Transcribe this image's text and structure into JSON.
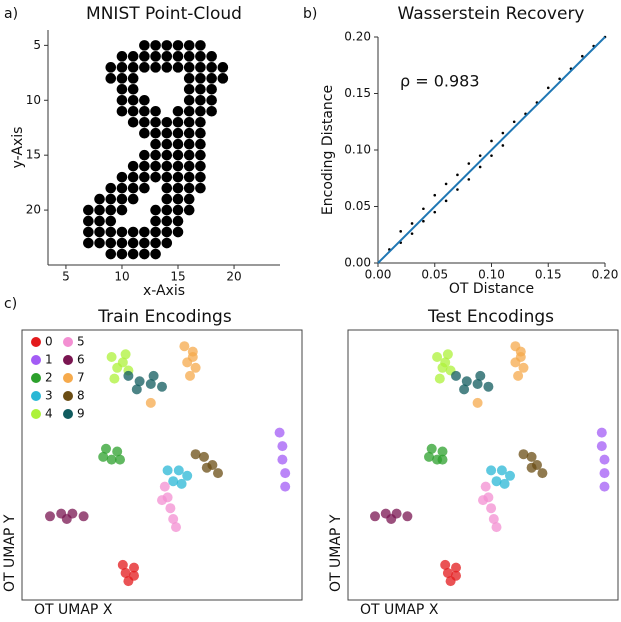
{
  "chart_data": [
    {
      "type": "scatter",
      "panel_label": "a)",
      "title": "MNIST Point-Cloud",
      "xlabel": "x-Axis",
      "ylabel": "y-Axis",
      "xlim": [
        3.4,
        24.1
      ],
      "ylim": [
        3.6,
        25
      ],
      "invert_y": true,
      "xticks": [
        5,
        10,
        15,
        20
      ],
      "yticks": [
        5,
        10,
        15,
        20
      ],
      "series": [
        {
          "color": "#000000",
          "x": [
            12,
            13,
            14,
            15,
            16,
            17,
            10,
            11,
            12,
            13,
            14,
            15,
            16,
            17,
            18,
            9,
            10,
            11,
            12,
            13,
            14,
            15,
            16,
            17,
            18,
            19,
            9,
            10,
            11,
            16,
            17,
            18,
            19,
            10,
            11,
            16,
            17,
            18,
            10,
            11,
            12,
            16,
            17,
            18,
            10,
            11,
            12,
            13,
            15,
            16,
            17,
            18,
            11,
            12,
            13,
            14,
            15,
            16,
            17,
            12,
            13,
            14,
            15,
            16,
            17,
            13,
            14,
            15,
            16,
            17,
            12,
            13,
            14,
            15,
            16,
            17,
            11,
            12,
            13,
            14,
            15,
            16,
            17,
            10,
            11,
            12,
            13,
            14,
            15,
            16,
            17,
            9,
            10,
            11,
            12,
            14,
            15,
            16,
            17,
            8,
            9,
            10,
            11,
            14,
            15,
            16,
            7,
            8,
            9,
            10,
            13,
            14,
            15,
            16,
            7,
            8,
            9,
            13,
            14,
            15,
            7,
            8,
            9,
            10,
            11,
            12,
            13,
            14,
            15,
            7,
            8,
            9,
            10,
            11,
            12,
            13,
            14,
            9,
            10,
            11,
            12,
            13
          ],
          "y": [
            5,
            5,
            5,
            5,
            5,
            5,
            6,
            6,
            6,
            6,
            6,
            6,
            6,
            6,
            6,
            7,
            7,
            7,
            7,
            7,
            7,
            7,
            7,
            7,
            7,
            7,
            8,
            8,
            8,
            8,
            8,
            8,
            8,
            9,
            9,
            9,
            9,
            9,
            10,
            10,
            10,
            10,
            10,
            10,
            11,
            11,
            11,
            11,
            11,
            11,
            11,
            11,
            12,
            12,
            12,
            12,
            12,
            12,
            12,
            13,
            13,
            13,
            13,
            13,
            13,
            14,
            14,
            14,
            14,
            14,
            15,
            15,
            15,
            15,
            15,
            15,
            16,
            16,
            16,
            16,
            16,
            16,
            16,
            17,
            17,
            17,
            17,
            17,
            17,
            17,
            17,
            18,
            18,
            18,
            18,
            18,
            18,
            18,
            18,
            19,
            19,
            19,
            19,
            19,
            19,
            19,
            20,
            20,
            20,
            20,
            20,
            20,
            20,
            20,
            21,
            21,
            21,
            21,
            21,
            21,
            22,
            22,
            22,
            22,
            22,
            22,
            22,
            22,
            22,
            23,
            23,
            23,
            23,
            23,
            23,
            23,
            23,
            24,
            24,
            24,
            24,
            24
          ]
        }
      ]
    },
    {
      "type": "scatter",
      "panel_label": "b)",
      "title": "Wasserstein Recovery",
      "xlabel": "OT Distance",
      "ylabel": "Encoding Distance",
      "annotation": "ρ = 0.983",
      "xlim": [
        0,
        0.2
      ],
      "ylim": [
        0,
        0.2
      ],
      "xticks": [
        {
          "value": 0,
          "label": "0.00"
        },
        {
          "value": 0.05,
          "label": "0.05"
        },
        {
          "value": 0.1,
          "label": "0.10"
        },
        {
          "value": 0.15,
          "label": "0.15"
        },
        {
          "value": 0.2,
          "label": "0.20"
        }
      ],
      "yticks": [
        {
          "value": 0,
          "label": "0.00"
        },
        {
          "value": 0.05,
          "label": "0.05"
        },
        {
          "value": 0.1,
          "label": "0.10"
        },
        {
          "value": 0.15,
          "label": "0.15"
        },
        {
          "value": 0.2,
          "label": "0.20"
        }
      ],
      "series": [
        {
          "color": "#000000",
          "x": [
            0.01,
            0.02,
            0.02,
            0.03,
            0.03,
            0.04,
            0.04,
            0.05,
            0.05,
            0.06,
            0.06,
            0.07,
            0.07,
            0.08,
            0.08,
            0.09,
            0.09,
            0.1,
            0.1,
            0.11,
            0.11,
            0.12,
            0.13,
            0.14,
            0.15,
            0.16,
            0.17,
            0.18,
            0.19,
            0.2
          ],
          "y": [
            0.012,
            0.018,
            0.028,
            0.035,
            0.026,
            0.048,
            0.037,
            0.06,
            0.045,
            0.07,
            0.055,
            0.078,
            0.065,
            0.088,
            0.074,
            0.095,
            0.085,
            0.108,
            0.095,
            0.115,
            0.104,
            0.125,
            0.132,
            0.142,
            0.155,
            0.163,
            0.172,
            0.183,
            0.192,
            0.2
          ]
        }
      ],
      "line": {
        "color": "#1f77b4",
        "x": [
          0,
          0.2
        ],
        "y": [
          0,
          0.2
        ]
      }
    },
    {
      "type": "scatter",
      "panel_label": "c)",
      "title": "Train Encodings",
      "xlabel": "OT UMAP X",
      "ylabel": "OT UMAP Y",
      "xlim": [
        0,
        100
      ],
      "ylim": [
        0,
        100
      ],
      "frame": true,
      "legend": true,
      "series": [
        {
          "name": "0",
          "color": "#e31a1c",
          "x": [
            36,
            40,
            37,
            40,
            38
          ],
          "y": [
            13,
            12,
            10,
            9,
            7
          ]
        },
        {
          "name": "1",
          "color": "#a35cf5",
          "x": [
            92,
            93,
            93,
            94,
            94
          ],
          "y": [
            62,
            57,
            52,
            47,
            42
          ]
        },
        {
          "name": "2",
          "color": "#2ca02c",
          "x": [
            30,
            34,
            32,
            29,
            35
          ],
          "y": [
            56,
            55,
            52,
            53,
            52
          ]
        },
        {
          "name": "3",
          "color": "#2ab7d5",
          "x": [
            52,
            56,
            59,
            54,
            57
          ],
          "y": [
            48,
            48,
            46,
            44,
            43
          ]
        },
        {
          "name": "4",
          "color": "#adf23a",
          "x": [
            32,
            37,
            34,
            38,
            33,
            36
          ],
          "y": [
            90,
            91,
            86,
            85,
            82,
            88
          ]
        },
        {
          "name": "5",
          "color": "#f38fd2",
          "x": [
            51,
            52,
            53,
            54,
            55,
            50
          ],
          "y": [
            42,
            38,
            34,
            30,
            27,
            37
          ]
        },
        {
          "name": "6",
          "color": "#7a1651",
          "x": [
            10,
            14,
            18,
            22,
            16
          ],
          "y": [
            31,
            32,
            32,
            31,
            30
          ]
        },
        {
          "name": "7",
          "color": "#f6aa4c",
          "x": [
            58,
            61,
            59,
            62,
            60,
            61,
            46
          ],
          "y": [
            94,
            92,
            88,
            86,
            83,
            90,
            73
          ]
        },
        {
          "name": "8",
          "color": "#6b4d14",
          "x": [
            62,
            65,
            68,
            70,
            66
          ],
          "y": [
            54,
            53,
            50,
            47,
            49
          ]
        },
        {
          "name": "9",
          "color": "#105b5e",
          "x": [
            38,
            42,
            46,
            50,
            41,
            47
          ],
          "y": [
            83,
            81,
            80,
            79,
            78,
            83
          ]
        }
      ]
    },
    {
      "type": "scatter",
      "title": "Test Encodings",
      "xlabel": "OT UMAP X",
      "ylabel": "OT UMAP Y",
      "xlim": [
        0,
        100
      ],
      "ylim": [
        0,
        100
      ],
      "frame": true,
      "legend": false,
      "series": [
        {
          "name": "0",
          "color": "#e31a1c",
          "x": [
            36,
            40,
            37,
            40,
            38
          ],
          "y": [
            13,
            12,
            10,
            9,
            7
          ]
        },
        {
          "name": "1",
          "color": "#a35cf5",
          "x": [
            94,
            94,
            95,
            95,
            95
          ],
          "y": [
            62,
            57,
            52,
            47,
            42
          ]
        },
        {
          "name": "2",
          "color": "#2ca02c",
          "x": [
            31,
            35,
            33,
            30,
            35
          ],
          "y": [
            56,
            55,
            52,
            53,
            52
          ]
        },
        {
          "name": "3",
          "color": "#2ab7d5",
          "x": [
            53,
            57,
            60,
            55,
            58
          ],
          "y": [
            48,
            48,
            46,
            44,
            43
          ]
        },
        {
          "name": "4",
          "color": "#adf23a",
          "x": [
            33,
            37,
            35,
            38,
            34,
            36
          ],
          "y": [
            90,
            91,
            86,
            85,
            82,
            88
          ]
        },
        {
          "name": "5",
          "color": "#f38fd2",
          "x": [
            51,
            52,
            53,
            54,
            55,
            50
          ],
          "y": [
            42,
            38,
            34,
            30,
            27,
            37
          ]
        },
        {
          "name": "6",
          "color": "#7a1651",
          "x": [
            10,
            14,
            18,
            22,
            16
          ],
          "y": [
            31,
            32,
            32,
            31,
            30
          ]
        },
        {
          "name": "7",
          "color": "#f6aa4c",
          "x": [
            62,
            64,
            62,
            65,
            63,
            64,
            48
          ],
          "y": [
            94,
            92,
            88,
            86,
            83,
            90,
            73
          ]
        },
        {
          "name": "8",
          "color": "#6b4d14",
          "x": [
            65,
            68,
            70,
            72,
            68
          ],
          "y": [
            54,
            53,
            50,
            47,
            49
          ]
        },
        {
          "name": "9",
          "color": "#105b5e",
          "x": [
            40,
            44,
            48,
            52,
            43,
            49
          ],
          "y": [
            83,
            81,
            80,
            79,
            78,
            83
          ]
        }
      ]
    }
  ]
}
